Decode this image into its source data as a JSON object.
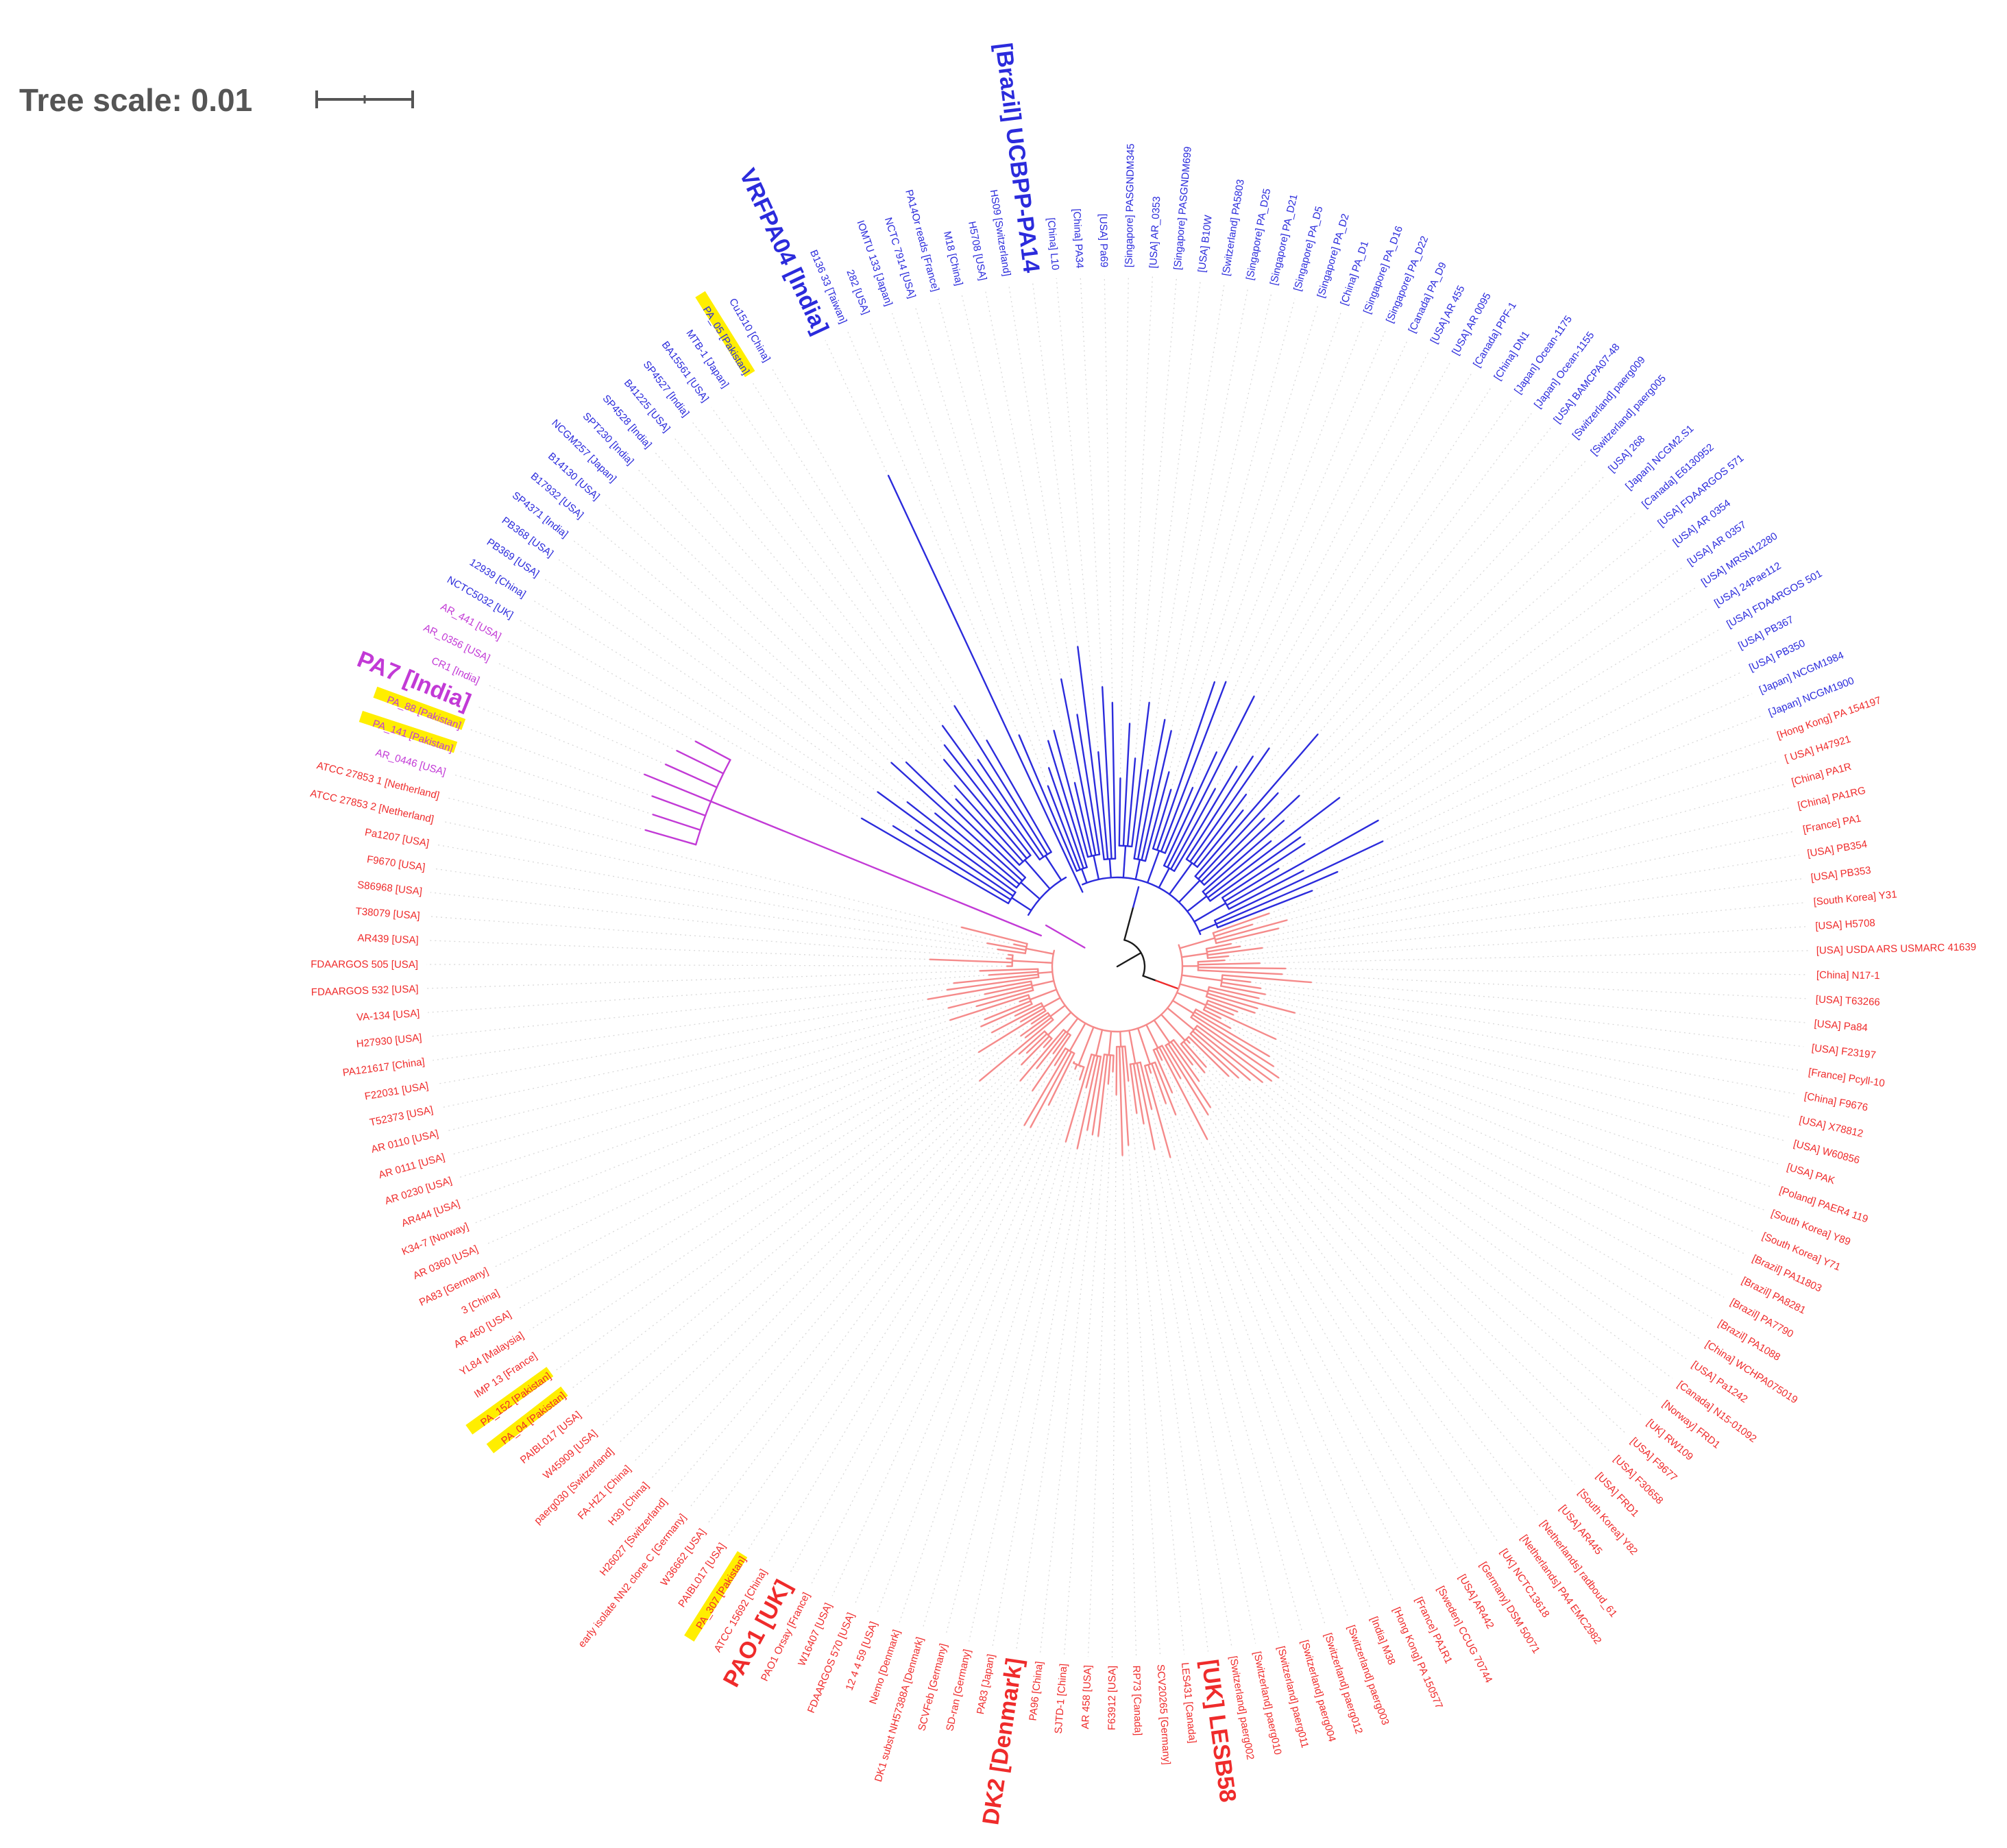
{
  "tree_scale": {
    "label": "Tree scale: 0.01"
  },
  "colors": {
    "blue": "#2b2bdc",
    "magenta": "#c23ad6",
    "red": "#ef2b2b",
    "red_light": "#f58a8a",
    "root": "#1a1a1a",
    "highlight": "#ffee00",
    "guide": "#d8d8d8"
  },
  "leaves": [
    {
      "text": "VRFPA04 [India]",
      "clade": "blue",
      "big": true
    },
    {
      "text": "B136 33 [Taiwan]",
      "clade": "blue"
    },
    {
      "text": "282 [USA]",
      "clade": "blue"
    },
    {
      "text": "IOMTU 133 [Japan]",
      "clade": "blue"
    },
    {
      "text": "NCTC 7914 [USA]",
      "clade": "blue"
    },
    {
      "text": "PA14Or reads [France]",
      "clade": "blue"
    },
    {
      "text": "M18 [China]",
      "clade": "blue"
    },
    {
      "text": "H5708 [USA]",
      "clade": "blue"
    },
    {
      "text": "HS09 [Switzerland]",
      "clade": "blue"
    },
    {
      "text": "[Brazil] UCBPP-PA14",
      "clade": "blue",
      "big": true
    },
    {
      "text": "[China] L10",
      "clade": "blue"
    },
    {
      "text": "[China] PA34",
      "clade": "blue"
    },
    {
      "text": "[USA] Pa69",
      "clade": "blue"
    },
    {
      "text": "[Singapore] PASGNDM345",
      "clade": "blue"
    },
    {
      "text": "[USA] AR_0353",
      "clade": "blue"
    },
    {
      "text": "[Singapore] PASGNDM699",
      "clade": "blue"
    },
    {
      "text": "[USA] B10W",
      "clade": "blue"
    },
    {
      "text": "[Switzerland] PA5803",
      "clade": "blue"
    },
    {
      "text": "[Singapore] PA_D25",
      "clade": "blue"
    },
    {
      "text": "[Singapore] PA_D21",
      "clade": "blue"
    },
    {
      "text": "[Singapore] PA_D5",
      "clade": "blue"
    },
    {
      "text": "[Singapore] PA_D2",
      "clade": "blue"
    },
    {
      "text": "[China] PA_D1",
      "clade": "blue"
    },
    {
      "text": "[Singapore] PA_D16",
      "clade": "blue"
    },
    {
      "text": "[Singapore] PA_D22",
      "clade": "blue"
    },
    {
      "text": "[Canada] PA_D9",
      "clade": "blue"
    },
    {
      "text": "[USA] AR 455",
      "clade": "blue"
    },
    {
      "text": "[USA] AR 0095",
      "clade": "blue"
    },
    {
      "text": "[Canada] PPF-1",
      "clade": "blue"
    },
    {
      "text": "[China] DN1",
      "clade": "blue"
    },
    {
      "text": "[Japan] Ocean-1175",
      "clade": "blue"
    },
    {
      "text": "[Japan] Ocean-1155",
      "clade": "blue"
    },
    {
      "text": "[USA] BAMCPA07-48",
      "clade": "blue"
    },
    {
      "text": "[Switzerland] paerg009",
      "clade": "blue"
    },
    {
      "text": "[Switzerland] paerg005",
      "clade": "blue"
    },
    {
      "text": "[USA] 268",
      "clade": "blue"
    },
    {
      "text": "[Japan] NCGM2.S1",
      "clade": "blue"
    },
    {
      "text": "[Canada] E6130952",
      "clade": "blue"
    },
    {
      "text": "[USA] FDAARGOS 571",
      "clade": "blue"
    },
    {
      "text": "[USA] AR 0354",
      "clade": "blue"
    },
    {
      "text": "[USA] AR 0357",
      "clade": "blue"
    },
    {
      "text": "[USA] MRSN12280",
      "clade": "blue"
    },
    {
      "text": "[USA] 24Pae112",
      "clade": "blue"
    },
    {
      "text": "[USA] FDAARGOS 501",
      "clade": "blue"
    },
    {
      "text": "[USA] PB367",
      "clade": "blue"
    },
    {
      "text": "[USA] PB350",
      "clade": "blue"
    },
    {
      "text": "[Japan] NCGM1984",
      "clade": "blue"
    },
    {
      "text": "[Japan] NCGM1900",
      "clade": "blue"
    },
    {
      "text": "[Hong Kong] PA 154197",
      "clade": "red"
    },
    {
      "text": "[ USA] H47921",
      "clade": "red"
    },
    {
      "text": "[China] PA1R",
      "clade": "red"
    },
    {
      "text": "[China] PA1RG",
      "clade": "red"
    },
    {
      "text": "[France] PA1",
      "clade": "red"
    },
    {
      "text": "[USA] PB354",
      "clade": "red"
    },
    {
      "text": "[USA] PB353",
      "clade": "red"
    },
    {
      "text": "[South Korea] Y31",
      "clade": "red"
    },
    {
      "text": "[USA] H5708",
      "clade": "red"
    },
    {
      "text": "[USA] USDA ARS USMARC 41639",
      "clade": "red"
    },
    {
      "text": "[China] N17-1",
      "clade": "red"
    },
    {
      "text": "[USA] T63266",
      "clade": "red"
    },
    {
      "text": "[USA] Pa84",
      "clade": "red"
    },
    {
      "text": "[USA] F23197",
      "clade": "red"
    },
    {
      "text": "[France] Pcyll-10",
      "clade": "red"
    },
    {
      "text": "[China] F9676",
      "clade": "red"
    },
    {
      "text": "[USA] X78812",
      "clade": "red"
    },
    {
      "text": "[USA] W60856",
      "clade": "red"
    },
    {
      "text": "[USA] PAK",
      "clade": "red"
    },
    {
      "text": "[Poland] PAER4 119",
      "clade": "red"
    },
    {
      "text": "[South Korea] Y89",
      "clade": "red"
    },
    {
      "text": "[South Korea] Y71",
      "clade": "red"
    },
    {
      "text": "[Brazil] PA11803",
      "clade": "red"
    },
    {
      "text": "[Brazil] PA8281",
      "clade": "red"
    },
    {
      "text": "[Brazil] PA7790",
      "clade": "red"
    },
    {
      "text": "[Brazil] PA1088",
      "clade": "red"
    },
    {
      "text": "[China] WCHPA075019",
      "clade": "red"
    },
    {
      "text": "[USA] Pa1242",
      "clade": "red"
    },
    {
      "text": "[Canada] N15-01092",
      "clade": "red"
    },
    {
      "text": "[Norway] FRD1",
      "clade": "red"
    },
    {
      "text": "[UK] RW109",
      "clade": "red"
    },
    {
      "text": "[USA] F9677",
      "clade": "red"
    },
    {
      "text": "[USA] F30658",
      "clade": "red"
    },
    {
      "text": "[USA] FRD1",
      "clade": "red"
    },
    {
      "text": "[South Korea] Y82",
      "clade": "red"
    },
    {
      "text": "[USA] AR445",
      "clade": "red"
    },
    {
      "text": "[Netherlands] radboud_61",
      "clade": "red"
    },
    {
      "text": "[Netherlands] PA4 EMC2982",
      "clade": "red"
    },
    {
      "text": "[UK] NCTC13618",
      "clade": "red"
    },
    {
      "text": "[Germany] DSM 50071",
      "clade": "red"
    },
    {
      "text": "[USA] AR442",
      "clade": "red"
    },
    {
      "text": "[Sweden] CCUG 70744",
      "clade": "red"
    },
    {
      "text": "[France] PA1R1",
      "clade": "red"
    },
    {
      "text": "[Hong Kong] PA 150577",
      "clade": "red"
    },
    {
      "text": "[India] M38",
      "clade": "red"
    },
    {
      "text": "[Switzerland] paerg003",
      "clade": "red"
    },
    {
      "text": "[Switzerland] paerg012",
      "clade": "red"
    },
    {
      "text": "[Switzerland] paerg004",
      "clade": "red"
    },
    {
      "text": "[Switzerland] paerg011",
      "clade": "red"
    },
    {
      "text": "[Switzerland] paerg010",
      "clade": "red"
    },
    {
      "text": "[Switzerland] paerg002",
      "clade": "red"
    },
    {
      "text": "[UK] LESB58",
      "clade": "red",
      "big": true
    },
    {
      "text": "LES431 [Canada]",
      "clade": "red"
    },
    {
      "text": "SCV20265 [Germany]",
      "clade": "red"
    },
    {
      "text": "RP73 [Canada]",
      "clade": "red"
    },
    {
      "text": "F63912 [USA]",
      "clade": "red"
    },
    {
      "text": "AR 458 [USA]",
      "clade": "red"
    },
    {
      "text": "SJTD-1 [China]",
      "clade": "red"
    },
    {
      "text": "PA96 [China]",
      "clade": "red"
    },
    {
      "text": "DK2 [Denmark]",
      "clade": "red",
      "big": true
    },
    {
      "text": "PA83 [Japan]",
      "clade": "red"
    },
    {
      "text": "SD-ran [Germany]",
      "clade": "red"
    },
    {
      "text": "SCVFeb [Germany]",
      "clade": "red"
    },
    {
      "text": "DK1 subst NH57388A [Denmark]",
      "clade": "red"
    },
    {
      "text": "Nemo [Denmark]",
      "clade": "red"
    },
    {
      "text": "12 4 4 59 [USA]",
      "clade": "red"
    },
    {
      "text": "FDAARGOS 570 [USA]",
      "clade": "red"
    },
    {
      "text": "W16407 [USA]",
      "clade": "red"
    },
    {
      "text": "PAO1 Orsay [France]",
      "clade": "red"
    },
    {
      "text": "PAO1 [UK]",
      "clade": "red",
      "big": true
    },
    {
      "text": "ATCC 15692 [China]",
      "clade": "red"
    },
    {
      "text": "PA_307 [Pakistan]",
      "clade": "red",
      "highlight": true
    },
    {
      "text": "PAIBL017 [USA]",
      "clade": "red"
    },
    {
      "text": "W36662 [USA]",
      "clade": "red"
    },
    {
      "text": "early isolate NN2 clone C [Germany]",
      "clade": "red"
    },
    {
      "text": "H26027 [Switzerland]",
      "clade": "red"
    },
    {
      "text": "H39 [China]",
      "clade": "red"
    },
    {
      "text": "FA-HZ1 [China]",
      "clade": "red"
    },
    {
      "text": "paerg030 [Switzerland]",
      "clade": "red"
    },
    {
      "text": "W45909 [USA]",
      "clade": "red"
    },
    {
      "text": "PAIBL017 [USA]",
      "clade": "red"
    },
    {
      "text": "PA_04 [Pakistan]",
      "clade": "red",
      "highlight": true
    },
    {
      "text": "PA_152 [Pakistan]",
      "clade": "red",
      "highlight": true
    },
    {
      "text": "IMP 13 [France]",
      "clade": "red"
    },
    {
      "text": "YL84 [Malaysia]",
      "clade": "red"
    },
    {
      "text": "AR 460 [USA]",
      "clade": "red"
    },
    {
      "text": "3 [China]",
      "clade": "red"
    },
    {
      "text": "PA83 [Germany]",
      "clade": "red"
    },
    {
      "text": "AR 0360 [USA]",
      "clade": "red"
    },
    {
      "text": "K34-7 [Norway]",
      "clade": "red"
    },
    {
      "text": "AR444 [USA]",
      "clade": "red"
    },
    {
      "text": "AR 0230 [USA]",
      "clade": "red"
    },
    {
      "text": "AR 0111 [USA]",
      "clade": "red"
    },
    {
      "text": "AR 0110 [USA]",
      "clade": "red"
    },
    {
      "text": "T52373 [USA]",
      "clade": "red"
    },
    {
      "text": "F22031 [USA]",
      "clade": "red"
    },
    {
      "text": "PA121617 [China]",
      "clade": "red"
    },
    {
      "text": "H27930 [USA]",
      "clade": "red"
    },
    {
      "text": "VA-134 [USA]",
      "clade": "red"
    },
    {
      "text": "FDAARGOS 532 [USA]",
      "clade": "red"
    },
    {
      "text": "FDAARGOS 505 [USA]",
      "clade": "red"
    },
    {
      "text": "AR439 [USA]",
      "clade": "red"
    },
    {
      "text": "T38079 [USA]",
      "clade": "red"
    },
    {
      "text": "S86968 [USA]",
      "clade": "red"
    },
    {
      "text": "F9670 [USA]",
      "clade": "red"
    },
    {
      "text": "Pa1207 [USA]",
      "clade": "red"
    },
    {
      "text": "ATCC 27853 2 [Netherland]",
      "clade": "red"
    },
    {
      "text": "ATCC 27853 1 [Netherland]",
      "clade": "red"
    },
    {
      "text": "AR_0446 [USA]",
      "clade": "magenta"
    },
    {
      "text": "PA_141 [Pakistan]",
      "clade": "magenta",
      "highlight": true
    },
    {
      "text": "PA_88 [Pakistan]",
      "clade": "magenta",
      "highlight": true
    },
    {
      "text": "PA7 [India]",
      "clade": "magenta",
      "big": true
    },
    {
      "text": "CR1 [India]",
      "clade": "magenta"
    },
    {
      "text": "AR_0356 [USA]",
      "clade": "magenta"
    },
    {
      "text": "AR_441 [USA]",
      "clade": "magenta"
    },
    {
      "text": "NCTC5032 [UK]",
      "clade": "blue"
    },
    {
      "text": "12939 [China]",
      "clade": "blue"
    },
    {
      "text": "PB369 [USA]",
      "clade": "blue"
    },
    {
      "text": "PB368 [USA]",
      "clade": "blue"
    },
    {
      "text": "SP4371 [India]",
      "clade": "blue"
    },
    {
      "text": "B17932 [USA]",
      "clade": "blue"
    },
    {
      "text": "B14130 [USA]",
      "clade": "blue"
    },
    {
      "text": "NCGM257 [Japan]",
      "clade": "blue"
    },
    {
      "text": "SPT230 [India]",
      "clade": "blue"
    },
    {
      "text": "SP4528 [India]",
      "clade": "blue"
    },
    {
      "text": "B41225 [USA]",
      "clade": "blue"
    },
    {
      "text": "SP4527 [India]",
      "clade": "blue"
    },
    {
      "text": "BA15561 [USA]",
      "clade": "blue"
    },
    {
      "text": "MTB-1 [Japan]",
      "clade": "blue"
    },
    {
      "text": "PA_05 [Pakistan]",
      "clade": "blue",
      "highlight": true
    },
    {
      "text": "Cu1510 [China]",
      "clade": "blue"
    }
  ]
}
